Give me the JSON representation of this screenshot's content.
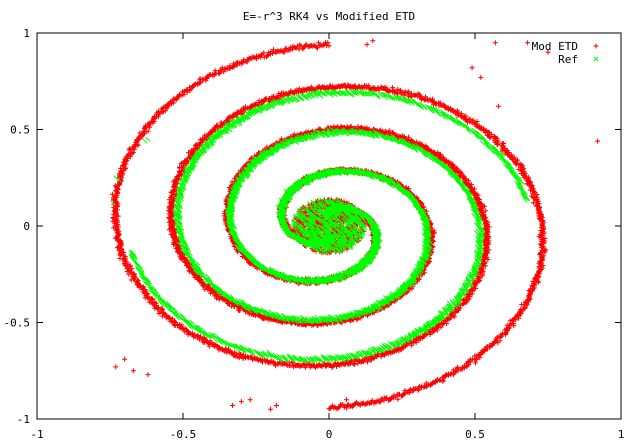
{
  "chart_data": {
    "type": "scatter",
    "title": "E=-r^3 RK4 vs Modified ETD",
    "xlabel": "",
    "ylabel": "",
    "xlim": [
      -1,
      1
    ],
    "ylim": [
      -1,
      1
    ],
    "x_ticks": [
      -1,
      -0.5,
      0,
      0.5,
      1
    ],
    "x_tick_labels": [
      "-1",
      "-0.5",
      "0",
      "0.5",
      "1"
    ],
    "y_ticks": [
      -1,
      -0.5,
      0,
      0.5,
      1
    ],
    "y_tick_labels": [
      "-1",
      "-0.5",
      "0",
      "0.5",
      "1"
    ],
    "grid": false,
    "legend_position": "top-right",
    "series": [
      {
        "name": "Mod ETD",
        "marker": "+",
        "color": "#ff0000",
        "description": "two-armed spiral, arms reach radius ~0.95",
        "spiral": {
          "r_start": 0.06,
          "r_end": 0.94,
          "turns": 2.0,
          "arm_spread": 0.018,
          "phase_deg": 90
        },
        "stray_points": [
          [
            0.92,
            0.44
          ],
          [
            0.58,
            0.62
          ],
          [
            0.52,
            0.77
          ],
          [
            0.49,
            0.82
          ],
          [
            0.57,
            0.95
          ],
          [
            0.68,
            0.95
          ],
          [
            0.75,
            0.9
          ],
          [
            0.13,
            0.94
          ],
          [
            0.15,
            0.96
          ],
          [
            -0.73,
            -0.73
          ],
          [
            -0.7,
            -0.69
          ],
          [
            -0.62,
            -0.77
          ],
          [
            -0.67,
            -0.75
          ],
          [
            -0.3,
            -0.91
          ],
          [
            -0.33,
            -0.93
          ],
          [
            -0.27,
            -0.9
          ],
          [
            -0.18,
            -0.93
          ],
          [
            0.06,
            -0.9
          ],
          [
            0.08,
            -0.93
          ],
          [
            -0.2,
            -0.95
          ]
        ]
      },
      {
        "name": "Ref",
        "marker": "x",
        "color": "#00ff00",
        "description": "two-armed spiral, arms reach radius ~0.78",
        "spiral": {
          "r_start": 0.06,
          "r_end": 0.78,
          "turns": 1.75,
          "arm_spread": 0.018,
          "phase_deg": 100
        },
        "stray_points": [
          [
            -0.63,
            0.44
          ],
          [
            -0.62,
            0.45
          ],
          [
            -0.72,
            0.24
          ],
          [
            -0.73,
            0.25
          ],
          [
            -0.74,
            0.12
          ]
        ]
      }
    ]
  }
}
